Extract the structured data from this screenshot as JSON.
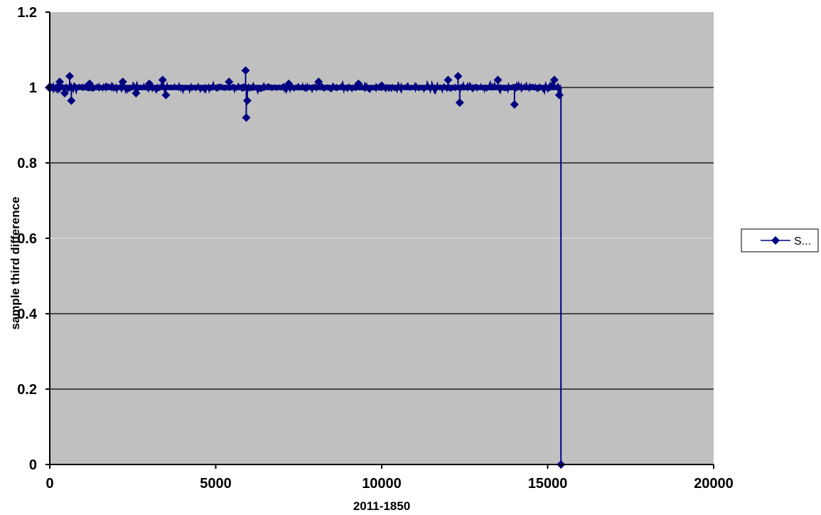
{
  "chart_data": {
    "type": "line",
    "title": "",
    "xlabel": "2011-1850",
    "ylabel": "sample third difference",
    "xlim": [
      0,
      20000
    ],
    "ylim": [
      0,
      1.2
    ],
    "x_ticks": [
      0,
      5000,
      10000,
      15000,
      20000
    ],
    "y_ticks": [
      0,
      0.2,
      0.4,
      0.6,
      0.8,
      1,
      1.2
    ],
    "grid": "horizontal",
    "legend": {
      "placement": "right",
      "entries": [
        "S..."
      ]
    },
    "colors": {
      "plot_background": "#c0c0c0",
      "series": "#000080",
      "gridline": "#000000"
    },
    "series": [
      {
        "name": "S...",
        "marker": "diamond",
        "baseline": 1.0,
        "x_end": 15400,
        "final_point": [
          15400,
          0
        ],
        "spikes": [
          [
            0,
            1.0
          ],
          [
            300,
            1.015
          ],
          [
            450,
            0.985
          ],
          [
            600,
            1.03
          ],
          [
            650,
            0.965
          ],
          [
            1200,
            1.01
          ],
          [
            2200,
            1.015
          ],
          [
            2600,
            0.985
          ],
          [
            3000,
            1.01
          ],
          [
            3400,
            1.02
          ],
          [
            3500,
            0.98
          ],
          [
            5400,
            1.015
          ],
          [
            5900,
            1.045
          ],
          [
            5920,
            0.92
          ],
          [
            5950,
            0.965
          ],
          [
            7200,
            1.01
          ],
          [
            8100,
            1.015
          ],
          [
            9300,
            1.01
          ],
          [
            10000,
            1.005
          ],
          [
            12000,
            1.02
          ],
          [
            12300,
            1.03
          ],
          [
            12350,
            0.96
          ],
          [
            13500,
            1.02
          ],
          [
            14000,
            0.955
          ],
          [
            15200,
            1.02
          ],
          [
            15350,
            0.98
          ]
        ]
      }
    ]
  }
}
